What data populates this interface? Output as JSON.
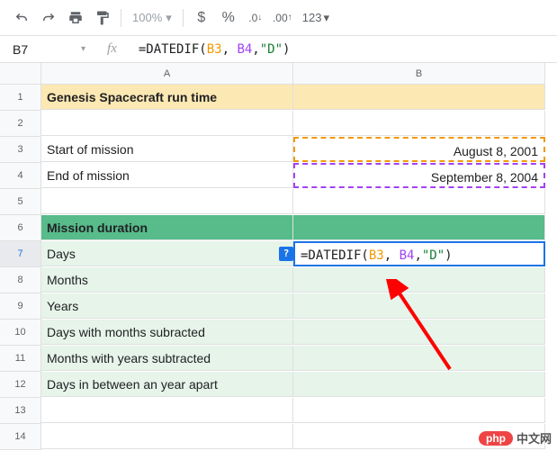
{
  "toolbar": {
    "zoom": "100%",
    "currency": "$",
    "percent": "%",
    "dec_dec": ".0",
    "dec_inc": ".00",
    "num_fmt": "123"
  },
  "namebox": "B7",
  "fx": "fx",
  "formula": {
    "prefix": "=DATEDIF(",
    "ref1": "B3",
    "comma1": ", ",
    "ref2": "B4",
    "comma2": ",",
    "str": "\"D\"",
    "suffix": ")"
  },
  "col_headers": [
    "A",
    "B"
  ],
  "rows": [
    {
      "n": "1",
      "a": "Genesis Spacecraft run time",
      "b": "",
      "a_cls": "yellow",
      "b_cls": "yellow"
    },
    {
      "n": "2",
      "a": "",
      "b": ""
    },
    {
      "n": "3",
      "a": "Start of mission",
      "b": "August 8, 2001",
      "b_box": "orange"
    },
    {
      "n": "4",
      "a": "End of mission",
      "b": "September 8, 2004",
      "b_box": "purple"
    },
    {
      "n": "5",
      "a": "",
      "b": ""
    },
    {
      "n": "6",
      "a": "Mission duration",
      "b": "",
      "a_cls": "green",
      "b_cls": "green"
    },
    {
      "n": "7",
      "a": "Days",
      "b": "=DATEDIF(B3, B4,\"D\")",
      "a_cls": "lightgreen",
      "active": true
    },
    {
      "n": "8",
      "a": "Months",
      "b": "",
      "a_cls": "lightgreen",
      "b_cls": "lightgreen"
    },
    {
      "n": "9",
      "a": "Years",
      "b": "",
      "a_cls": "lightgreen",
      "b_cls": "lightgreen"
    },
    {
      "n": "10",
      "a": "Days with months subracted",
      "b": "",
      "a_cls": "lightgreen",
      "b_cls": "lightgreen"
    },
    {
      "n": "11",
      "a": "Months with years subtracted",
      "b": "",
      "a_cls": "lightgreen",
      "b_cls": "lightgreen"
    },
    {
      "n": "12",
      "a": "Days in between an year apart",
      "b": "",
      "a_cls": "lightgreen",
      "b_cls": "lightgreen"
    },
    {
      "n": "13",
      "a": "",
      "b": ""
    },
    {
      "n": "14",
      "a": "",
      "b": ""
    }
  ],
  "hint": "?",
  "watermark": {
    "logo": "php",
    "text": "中文网"
  },
  "colors": {
    "accent": "#1a73e8",
    "orange": "#f29900",
    "purple": "#a142f4",
    "green_str": "#188038",
    "arrow": "#ff0000"
  }
}
